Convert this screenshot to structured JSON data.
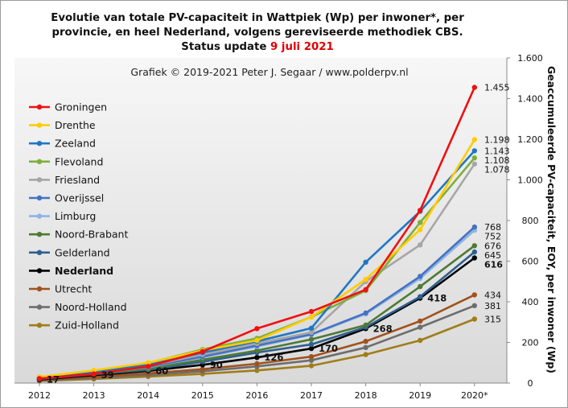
{
  "title": {
    "line1": "Evolutie van totale PV-capaciteit in Wattpiek (Wp) per inwoner*,  per",
    "line2": "provincie, en heel Nederland, volgens gereviseerde methodiek CBS.",
    "line3_prefix": "Status update ",
    "line3_date": "9 juli 2021"
  },
  "chart_data": {
    "type": "line",
    "watermark": "Grafiek  © 2019-2021 Peter J. Segaar / www.polderpv.nl",
    "ylabel": "Geaccumuleerde PV-capaciteit, EOY, per inwoner (Wp)",
    "categories": [
      "2012",
      "2013",
      "2014",
      "2015",
      "2016",
      "2017",
      "2018",
      "2019",
      "2020*"
    ],
    "ylim": [
      0,
      1600
    ],
    "yticks": [
      0,
      200,
      400,
      600,
      800,
      1000,
      1200,
      1400,
      1600
    ],
    "ytick_labels": [
      "0",
      "200",
      "400",
      "600",
      "800",
      "1.000",
      "1.200",
      "1.400",
      "1.600"
    ],
    "grid": false,
    "legend_position": "top-left",
    "series": [
      {
        "name": "Groningen",
        "color": "#ee1111",
        "values": [
          22,
          45,
          82,
          155,
          268,
          352,
          460,
          850,
          1455
        ],
        "end_label": "1.455"
      },
      {
        "name": "Drenthe",
        "color": "#ffcc00",
        "values": [
          30,
          62,
          100,
          160,
          210,
          325,
          510,
          755,
          1198
        ],
        "end_label": "1.198"
      },
      {
        "name": "Zeeland",
        "color": "#1f77c4",
        "values": [
          28,
          55,
          90,
          150,
          205,
          270,
          595,
          845,
          1143
        ],
        "end_label": "1.143"
      },
      {
        "name": "Flevoland",
        "color": "#7fae3c",
        "values": [
          28,
          60,
          98,
          165,
          220,
          325,
          455,
          790,
          1108
        ],
        "end_label": "1.108"
      },
      {
        "name": "Friesland",
        "color": "#a6a6a6",
        "values": [
          25,
          50,
          85,
          140,
          195,
          250,
          500,
          680,
          1078
        ],
        "end_label": "1.078"
      },
      {
        "name": "Overijssel",
        "color": "#4472c4",
        "values": [
          24,
          48,
          80,
          130,
          185,
          240,
          345,
          525,
          768
        ],
        "end_label": "768"
      },
      {
        "name": "Limburg",
        "color": "#8eb4e3",
        "values": [
          24,
          48,
          78,
          128,
          180,
          238,
          340,
          515,
          752
        ],
        "end_label": "752"
      },
      {
        "name": "Noord-Brabant",
        "color": "#4e7a33",
        "values": [
          22,
          45,
          70,
          115,
          160,
          215,
          285,
          475,
          676
        ],
        "end_label": "676"
      },
      {
        "name": "Gelderland",
        "color": "#2e5f8f",
        "values": [
          20,
          43,
          65,
          105,
          150,
          190,
          275,
          425,
          645
        ],
        "end_label": "645"
      },
      {
        "name": "Nederland",
        "color": "#000000",
        "values": [
          17,
          39,
          60,
          90,
          126,
          170,
          268,
          418,
          616
        ],
        "end_label": "616",
        "point_labels": [
          "17",
          "39",
          "60",
          "90",
          "126",
          "170",
          "268",
          "418",
          ""
        ],
        "bold": true
      },
      {
        "name": "Utrecht",
        "color": "#a0521d",
        "values": [
          15,
          30,
          48,
          68,
          95,
          130,
          205,
          305,
          434
        ],
        "end_label": "434"
      },
      {
        "name": "Noord-Holland",
        "color": "#6d6d6d",
        "values": [
          12,
          25,
          40,
          58,
          82,
          112,
          175,
          275,
          381
        ],
        "end_label": "381"
      },
      {
        "name": "Zuid-Holland",
        "color": "#a07d1a",
        "values": [
          10,
          20,
          32,
          45,
          62,
          85,
          140,
          210,
          315
        ],
        "end_label": "315"
      }
    ]
  }
}
